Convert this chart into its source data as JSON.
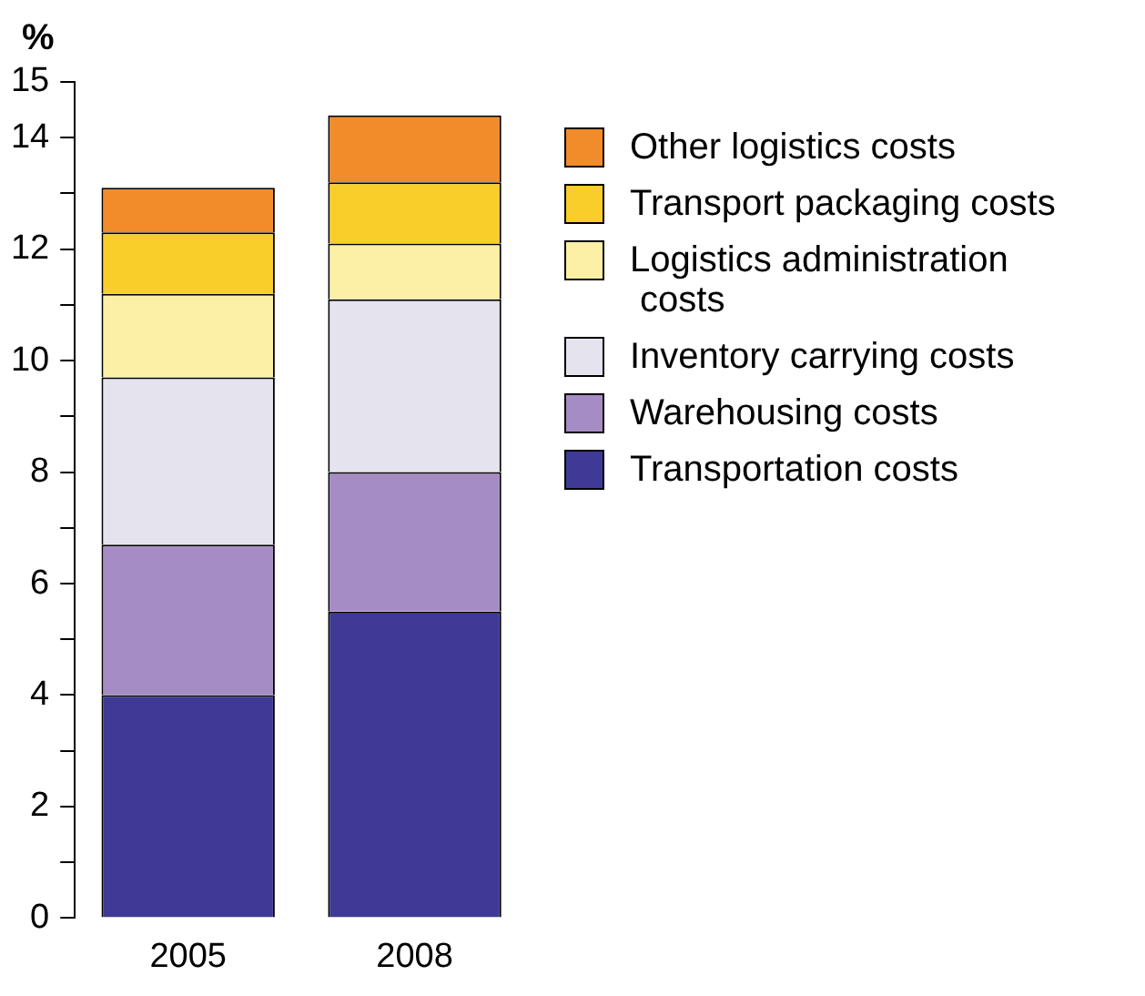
{
  "chart_data": {
    "type": "bar",
    "stacked": true,
    "ylabel": "%",
    "categories": [
      "2005",
      "2008"
    ],
    "series": [
      {
        "name": "Transportation costs",
        "color": "#3f3a96",
        "values": [
          4.0,
          5.5
        ]
      },
      {
        "name": "Warehousing costs",
        "color": "#a68cc4",
        "values": [
          2.7,
          2.5
        ]
      },
      {
        "name": "Inventory carrying costs",
        "color": "#e4e3ee",
        "values": [
          3.0,
          3.1
        ]
      },
      {
        "name": "Logistics administration\n costs",
        "color": "#fcefa6",
        "values": [
          1.5,
          1.0
        ]
      },
      {
        "name": "Transport packaging costs",
        "color": "#f9cd2a",
        "values": [
          1.1,
          1.1
        ]
      },
      {
        "name": "Other logistics costs",
        "color": "#f28c2a",
        "values": [
          0.8,
          1.2
        ]
      }
    ],
    "ylim": [
      0,
      15
    ],
    "yticks": [
      0,
      {
        "value": 1,
        "label": null
      },
      2,
      {
        "value": 3,
        "label": null
      },
      4,
      {
        "value": 5,
        "label": null
      },
      6,
      {
        "value": 7,
        "label": null
      },
      8,
      {
        "value": 9,
        "label": null
      },
      10,
      {
        "value": 11,
        "label": null
      },
      12,
      {
        "value": 13,
        "label": null
      },
      14,
      15
    ],
    "grid": false,
    "legend": "right"
  }
}
